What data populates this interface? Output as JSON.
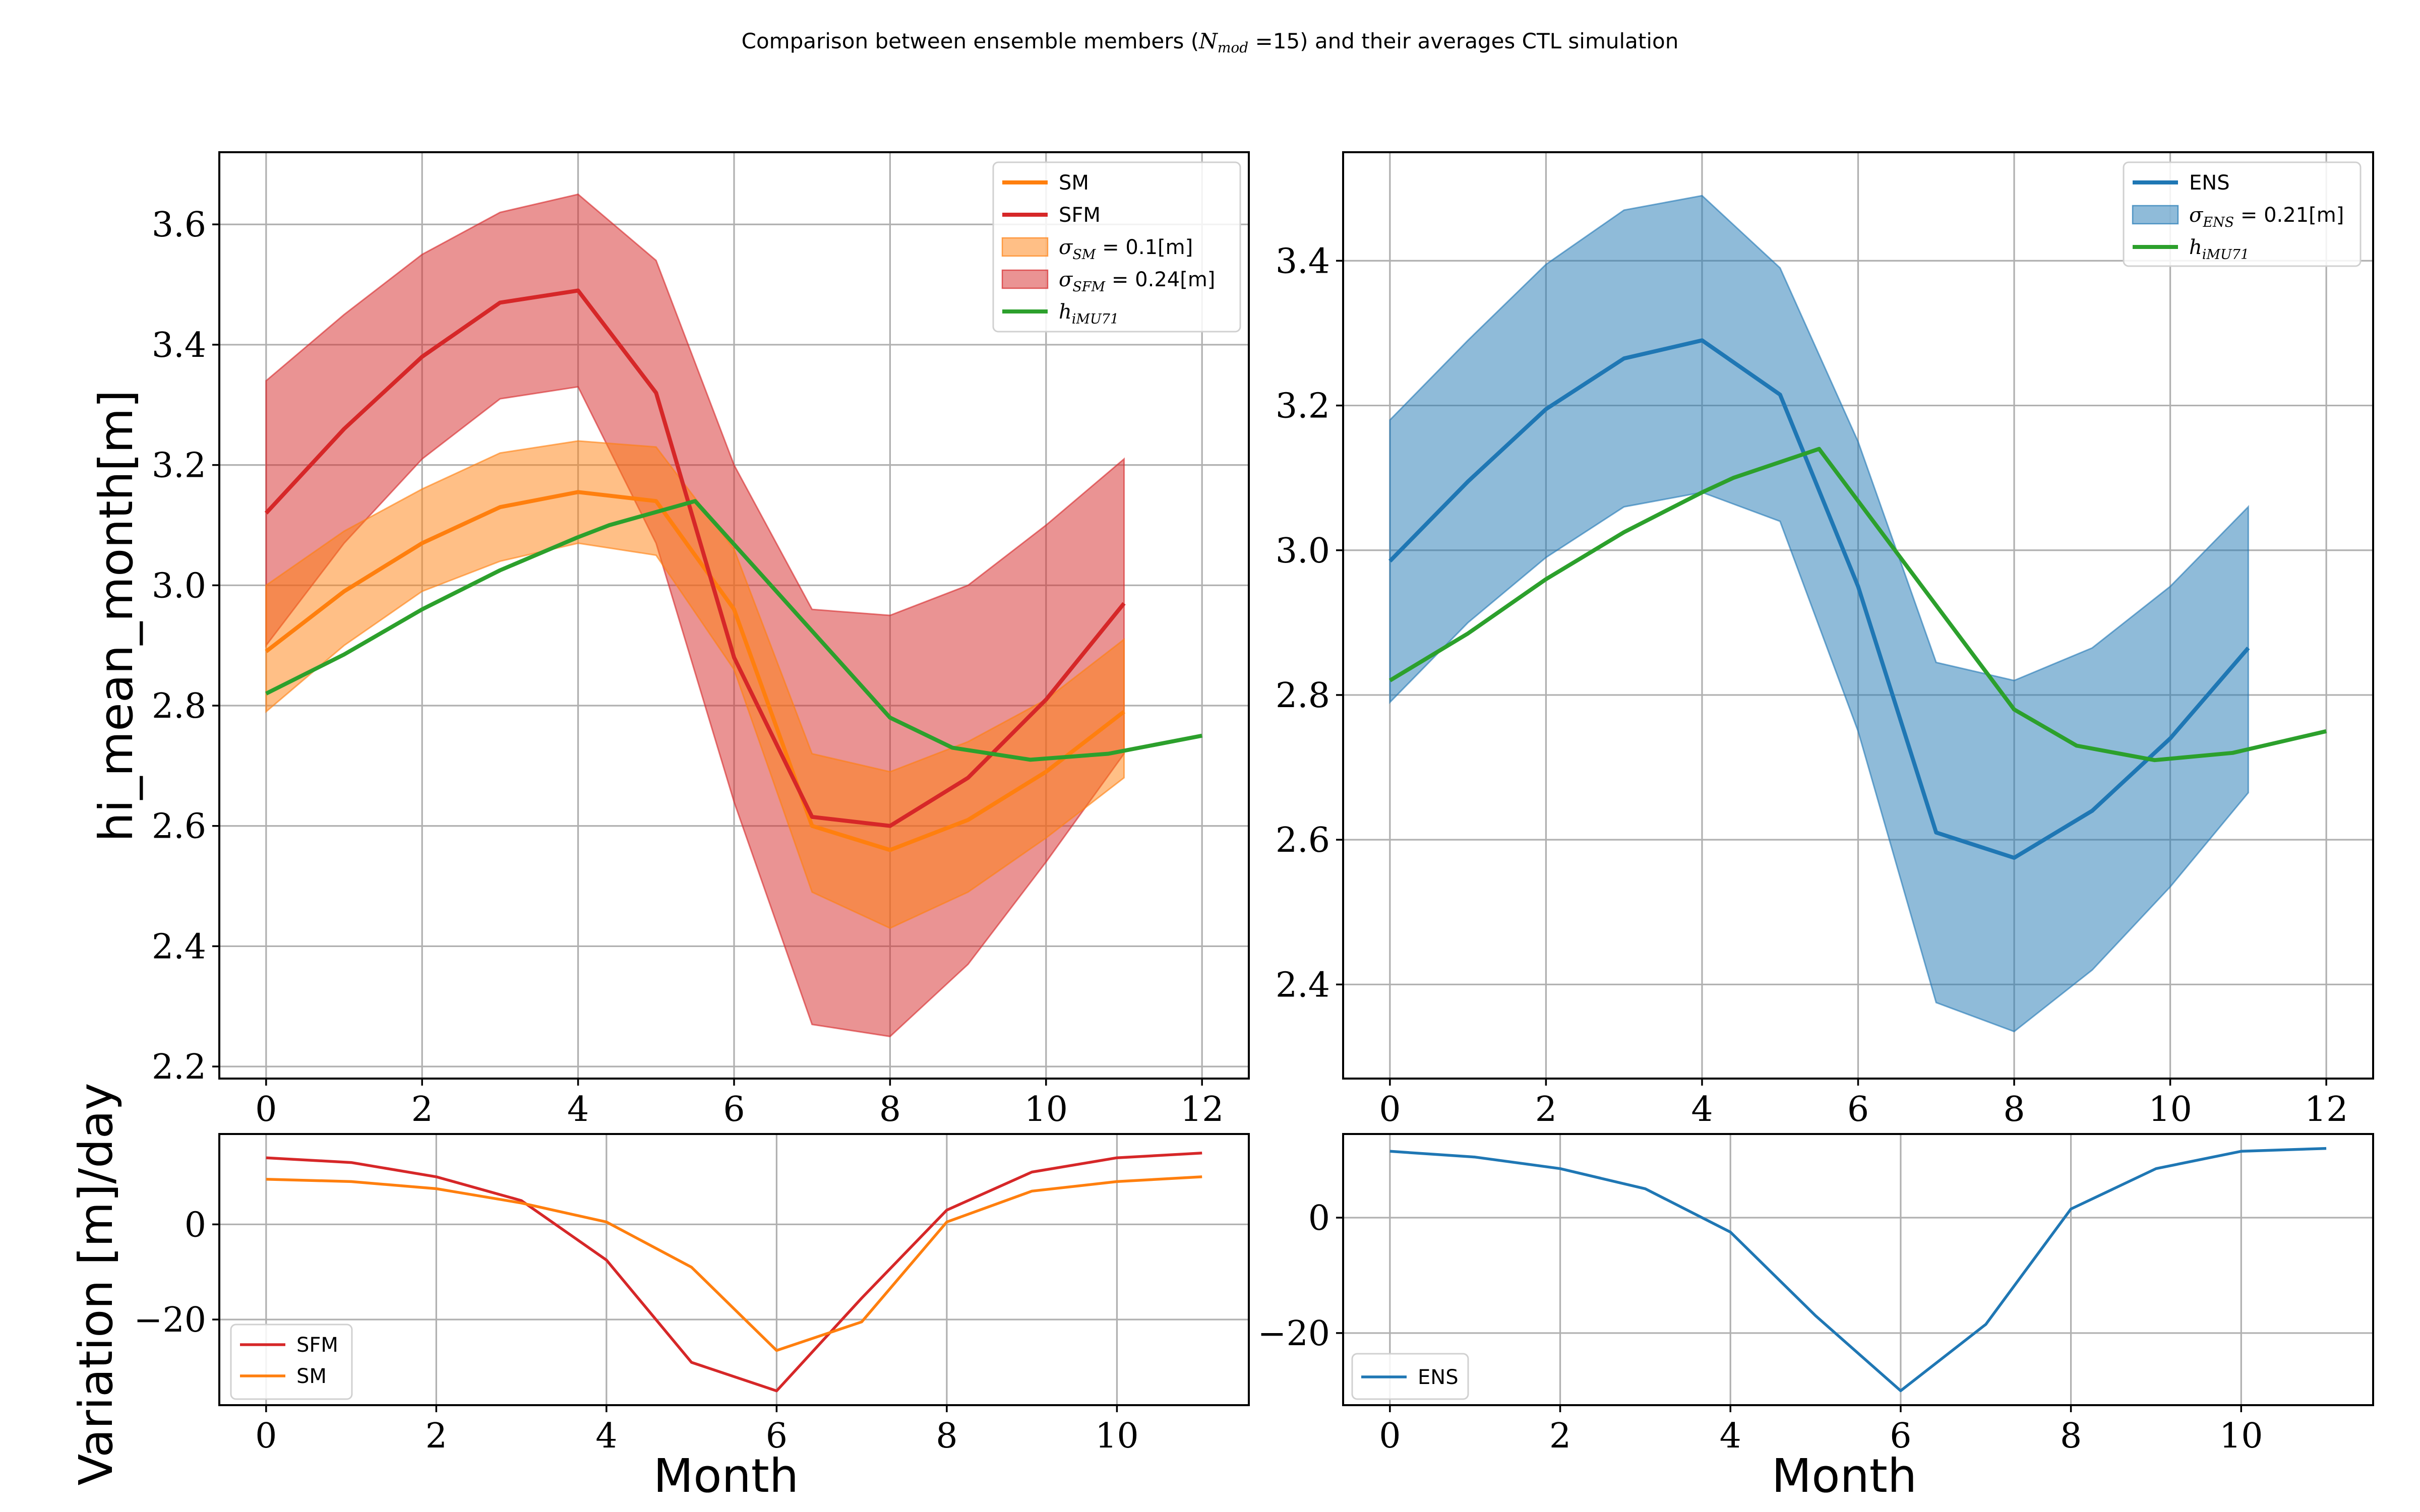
{
  "figure": {
    "suptitle": {
      "before": "Comparison between ensemble members (",
      "math_main": "N",
      "math_sub": "mod",
      "after": " =15) and their averages CTL simulation"
    }
  },
  "colors": {
    "SM": "#ff7f0e",
    "SFM": "#d62728",
    "ENS": "#1f77b4",
    "h_iMU71": "#2ca02c",
    "grid": "#b0b0b0",
    "band_SM": "rgba(255,127,14,0.5)",
    "band_SFM": "rgba(214,39,40,0.5)",
    "band_ENS": "rgba(31,119,180,0.5)"
  },
  "labels": {
    "ylabel_main": "hi_mean_month[m]",
    "ylabel_var": "Variation [m]/day",
    "xlabel": "Month"
  },
  "legends": {
    "tl": [
      {
        "kind": "line",
        "color_key": "SM",
        "text": "SM"
      },
      {
        "kind": "line",
        "color_key": "SFM",
        "text": "SFM"
      },
      {
        "kind": "patch",
        "color_key": "SM",
        "math": "σ",
        "sub": "SM",
        "text": " = 0.1[m]"
      },
      {
        "kind": "patch",
        "color_key": "SFM",
        "math": "σ",
        "sub": "SFM",
        "text": " = 0.24[m]"
      },
      {
        "kind": "line",
        "color_key": "h_iMU71",
        "math": "h",
        "sub": "iMU71",
        "text": ""
      }
    ],
    "tr": [
      {
        "kind": "line",
        "color_key": "ENS",
        "text": "ENS"
      },
      {
        "kind": "patch",
        "color_key": "ENS",
        "math": "σ",
        "sub": "ENS",
        "text": " = 0.21[m]"
      },
      {
        "kind": "line",
        "color_key": "h_iMU71",
        "math": "h",
        "sub": "iMU71",
        "text": ""
      }
    ],
    "bl": [
      {
        "kind": "line",
        "color_key": "SFM",
        "text": "SFM"
      },
      {
        "kind": "line",
        "color_key": "SM",
        "text": "SM"
      }
    ],
    "br": [
      {
        "kind": "line",
        "color_key": "ENS",
        "text": "ENS"
      }
    ]
  },
  "chart_data": [
    {
      "id": "tl",
      "type": "line",
      "xlim": [
        -0.6,
        12.6
      ],
      "ylim": [
        2.18,
        3.72
      ],
      "xticks": [
        0,
        2,
        4,
        6,
        8,
        10,
        12
      ],
      "yticks": [
        2.2,
        2.4,
        2.6,
        2.8,
        3.0,
        3.2,
        3.4,
        3.6
      ],
      "grid": true,
      "legend_position": "upper right",
      "series": [
        {
          "name": "SFM",
          "color_key": "SFM",
          "type": "band",
          "x": [
            0,
            1,
            2,
            3,
            4,
            5,
            6,
            7,
            8,
            9,
            10,
            11
          ],
          "low": [
            2.9,
            3.07,
            3.21,
            3.31,
            3.33,
            3.07,
            2.64,
            2.27,
            2.25,
            2.37,
            2.54,
            2.72
          ],
          "high": [
            3.34,
            3.45,
            3.55,
            3.62,
            3.65,
            3.54,
            3.2,
            2.96,
            2.95,
            3.0,
            3.1,
            3.21
          ]
        },
        {
          "name": "SM",
          "color_key": "SM",
          "type": "band",
          "x": [
            0,
            1,
            2,
            3,
            4,
            5,
            6,
            7,
            8,
            9,
            10,
            11
          ],
          "low": [
            2.79,
            2.9,
            2.99,
            3.04,
            3.07,
            3.05,
            2.86,
            2.49,
            2.43,
            2.49,
            2.58,
            2.68
          ],
          "high": [
            3.0,
            3.09,
            3.16,
            3.22,
            3.24,
            3.23,
            3.06,
            2.72,
            2.69,
            2.74,
            2.81,
            2.91
          ]
        },
        {
          "name": "SM",
          "color_key": "SM",
          "type": "line",
          "x": [
            0,
            1,
            2,
            3,
            4,
            5,
            6,
            7,
            8,
            9,
            10,
            11
          ],
          "y": [
            2.89,
            2.99,
            3.07,
            3.13,
            3.155,
            3.14,
            2.96,
            2.6,
            2.56,
            2.61,
            2.69,
            2.79
          ]
        },
        {
          "name": "SFM",
          "color_key": "SFM",
          "type": "line",
          "x": [
            0,
            1,
            2,
            3,
            4,
            5,
            6,
            7,
            8,
            9,
            10,
            11
          ],
          "y": [
            3.12,
            3.26,
            3.38,
            3.47,
            3.49,
            3.32,
            2.88,
            2.615,
            2.6,
            2.68,
            2.81,
            2.97
          ]
        },
        {
          "name": "h_iMU71",
          "color_key": "h_iMU71",
          "type": "line",
          "x": [
            0,
            1,
            2,
            3,
            4,
            4.4,
            5.5,
            8,
            8.8,
            9.8,
            10.8,
            12
          ],
          "y": [
            2.82,
            2.885,
            2.96,
            3.025,
            3.08,
            3.1,
            3.14,
            2.78,
            2.73,
            2.71,
            2.72,
            2.75
          ]
        }
      ]
    },
    {
      "id": "tr",
      "type": "line",
      "xlim": [
        -0.6,
        12.6
      ],
      "ylim": [
        2.27,
        3.55
      ],
      "xticks": [
        0,
        2,
        4,
        6,
        8,
        10,
        12
      ],
      "yticks": [
        2.4,
        2.6,
        2.8,
        3.0,
        3.2,
        3.4
      ],
      "grid": true,
      "legend_position": "upper right",
      "series": [
        {
          "name": "ENS",
          "color_key": "ENS",
          "type": "band",
          "x": [
            0,
            1,
            2,
            3,
            4,
            5,
            6,
            7,
            8,
            9,
            10,
            11
          ],
          "low": [
            2.79,
            2.9,
            2.99,
            3.06,
            3.08,
            3.04,
            2.75,
            2.375,
            2.335,
            2.42,
            2.535,
            2.665
          ],
          "high": [
            3.18,
            3.29,
            3.395,
            3.47,
            3.49,
            3.39,
            3.15,
            2.845,
            2.82,
            2.865,
            2.95,
            3.06
          ]
        },
        {
          "name": "ENS",
          "color_key": "ENS",
          "type": "line",
          "x": [
            0,
            1,
            2,
            3,
            4,
            5,
            6,
            7,
            8,
            9,
            10,
            11
          ],
          "y": [
            2.985,
            3.095,
            3.195,
            3.265,
            3.29,
            3.215,
            2.95,
            2.61,
            2.575,
            2.64,
            2.74,
            2.865
          ]
        },
        {
          "name": "h_iMU71",
          "color_key": "h_iMU71",
          "type": "line",
          "x": [
            0,
            1,
            2,
            3,
            4,
            4.4,
            5.5,
            8,
            8.8,
            9.8,
            10.8,
            12
          ],
          "y": [
            2.82,
            2.885,
            2.96,
            3.025,
            3.08,
            3.1,
            3.14,
            2.78,
            2.73,
            2.71,
            2.72,
            2.75
          ]
        }
      ]
    },
    {
      "id": "bl",
      "type": "line",
      "xlim": [
        -0.55,
        11.55
      ],
      "ylim": [
        -38,
        19
      ],
      "xticks": [
        0,
        2,
        4,
        6,
        8,
        10
      ],
      "yticks": [
        -20,
        0
      ],
      "grid": true,
      "legend_position": "lower left",
      "series": [
        {
          "name": "SFM",
          "color_key": "SFM",
          "type": "line",
          "x": [
            0,
            1,
            2,
            3,
            4,
            5,
            6,
            7,
            8,
            9,
            10,
            11
          ],
          "y": [
            14,
            13,
            10,
            5,
            -7.5,
            -29,
            -35,
            -15.5,
            3,
            11,
            14,
            15
          ]
        },
        {
          "name": "SM",
          "color_key": "SM",
          "type": "line",
          "x": [
            0,
            1,
            2,
            3,
            4,
            5,
            6,
            7,
            8,
            9,
            10,
            11
          ],
          "y": [
            9.5,
            9,
            7.5,
            4.5,
            0.5,
            -9,
            -26.5,
            -20.5,
            0.5,
            7,
            9,
            10
          ]
        }
      ]
    },
    {
      "id": "br",
      "type": "line",
      "xlim": [
        -0.55,
        11.55
      ],
      "ylim": [
        -32.5,
        14.5
      ],
      "xticks": [
        0,
        2,
        4,
        6,
        8,
        10
      ],
      "yticks": [
        -20,
        0
      ],
      "grid": true,
      "legend_position": "lower left",
      "series": [
        {
          "name": "ENS",
          "color_key": "ENS",
          "type": "line",
          "x": [
            0,
            1,
            2,
            3,
            4,
            5,
            6,
            7,
            8,
            9,
            10,
            11
          ],
          "y": [
            11.5,
            10.5,
            8.5,
            5,
            -2.5,
            -17,
            -30,
            -18.5,
            1.5,
            8.5,
            11.5,
            12
          ]
        }
      ]
    }
  ]
}
